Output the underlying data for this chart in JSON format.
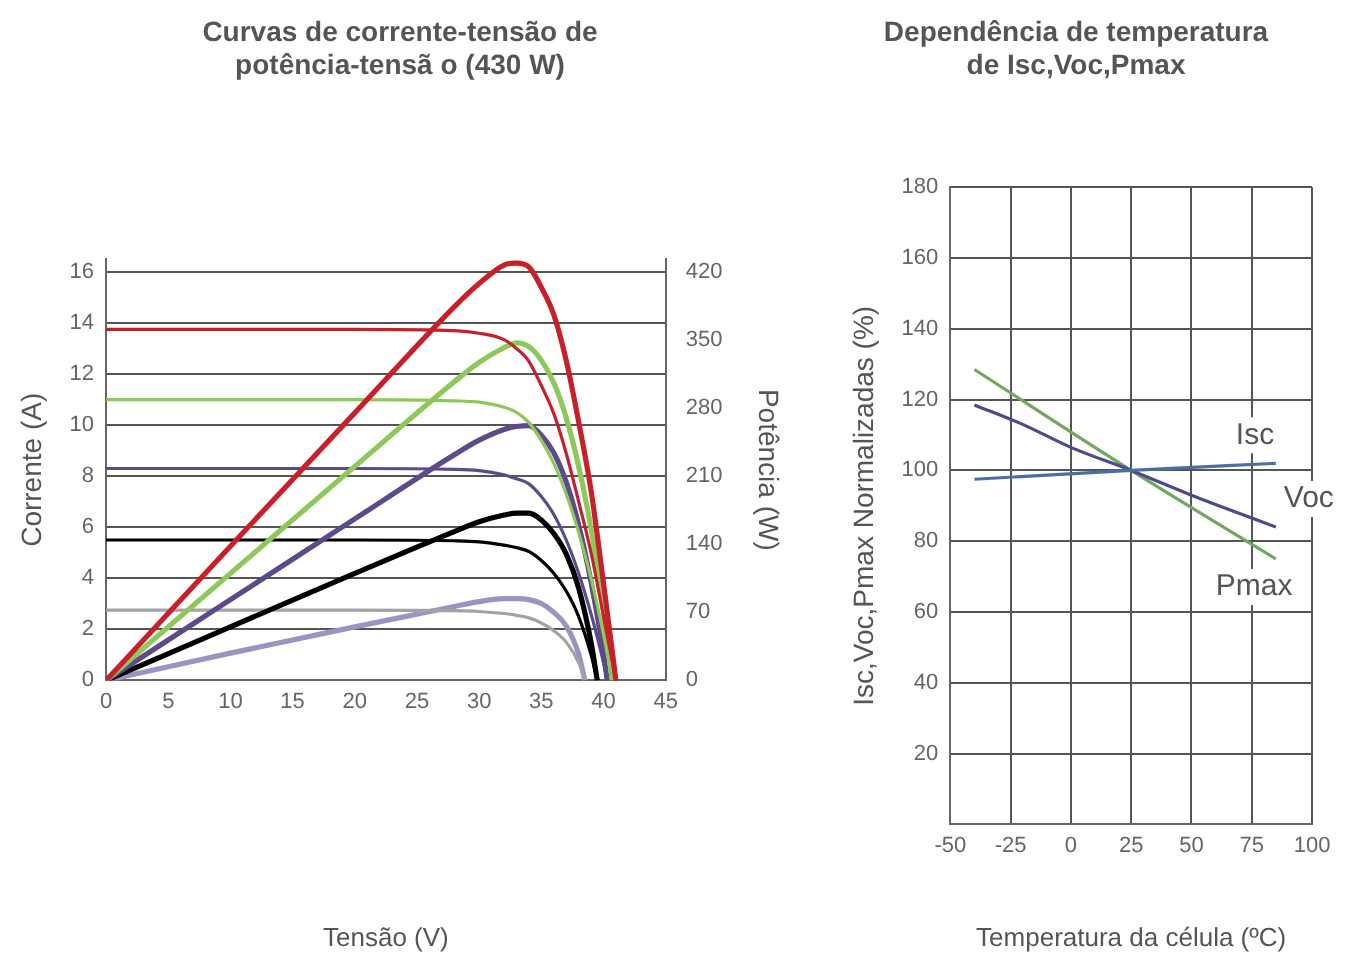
{
  "chart_data": [
    {
      "type": "line",
      "title": "Curvas de corrente-tensão de\npotência-tensã o (430 W)",
      "xlabel": "Tensão (V)",
      "ylabel": "Corrente (A)",
      "y2label": "Potência (W)",
      "xlim": [
        0,
        45
      ],
      "xticks": [
        0,
        5,
        10,
        15,
        20,
        25,
        30,
        35,
        40,
        45
      ],
      "ylim": [
        0,
        16.5
      ],
      "yticks": [
        0,
        2,
        4,
        6,
        8,
        10,
        12,
        14,
        16
      ],
      "y2lim": [
        0,
        433
      ],
      "y2ticks": [
        0,
        70,
        140,
        210,
        280,
        350,
        420
      ],
      "grid": "y",
      "legend": false,
      "marker": "none",
      "line_style": "solid",
      "series": [
        {
          "color": "#c8202a",
          "x": [
            0,
            10,
            20,
            28,
            30,
            32,
            33,
            34,
            35,
            36,
            37,
            38,
            39,
            40,
            41
          ],
          "values": [
            13.75,
            13.75,
            13.75,
            13.7,
            13.6,
            13.35,
            13.0,
            12.5,
            11.55,
            10.45,
            8.9,
            7.0,
            5.0,
            2.5,
            0
          ]
        },
        {
          "color": "#c8202a",
          "axis": "y2",
          "x": [
            0,
            10,
            20,
            28,
            30,
            32,
            33,
            34,
            35,
            36,
            37,
            38,
            39,
            40,
            41
          ],
          "values": [
            0,
            138,
            275,
            384,
            408,
            427,
            429,
            425,
            404,
            376,
            329,
            266,
            195,
            100,
            0
          ]
        },
        {
          "color": "#8dc85a",
          "x": [
            0,
            10,
            20,
            28,
            30,
            32,
            33,
            34,
            35,
            36,
            37,
            38,
            39,
            40,
            40.7
          ],
          "values": [
            11,
            11,
            11,
            10.95,
            10.9,
            10.7,
            10.5,
            10.1,
            9.4,
            8.5,
            7.3,
            5.8,
            4.0,
            1.8,
            0
          ]
        },
        {
          "color": "#8dc85a",
          "axis": "y2",
          "x": [
            0,
            10,
            20,
            28,
            30,
            32,
            33,
            34,
            35,
            36,
            37,
            38,
            39,
            40,
            40.7
          ],
          "values": [
            0,
            110,
            220,
            307,
            327,
            342,
            347,
            343,
            329,
            306,
            270,
            220,
            156,
            72,
            0
          ]
        },
        {
          "color": "#5d4a8a",
          "x": [
            0,
            10,
            20,
            28,
            30,
            32,
            33,
            34,
            35,
            36,
            37,
            38,
            39,
            40,
            40.3
          ],
          "values": [
            8.3,
            8.3,
            8.3,
            8.27,
            8.22,
            8.05,
            7.9,
            7.7,
            7.2,
            6.5,
            5.5,
            4.2,
            2.6,
            0.7,
            0
          ]
        },
        {
          "color": "#5d4a8a",
          "axis": "y2",
          "x": [
            0,
            10,
            20,
            28,
            30,
            32,
            33,
            34,
            35,
            36,
            37,
            38,
            39,
            40,
            40.3
          ],
          "values": [
            0,
            83,
            166,
            232,
            247,
            258,
            261,
            262,
            252,
            234,
            204,
            160,
            101,
            28,
            0
          ]
        },
        {
          "color": "#000000",
          "x": [
            0,
            10,
            20,
            28,
            30,
            32,
            33,
            34,
            35,
            36,
            37,
            38,
            39,
            39.5
          ],
          "values": [
            5.5,
            5.5,
            5.5,
            5.47,
            5.43,
            5.3,
            5.2,
            5.05,
            4.7,
            4.2,
            3.5,
            2.5,
            1.0,
            0
          ]
        },
        {
          "color": "#000000",
          "axis": "y2",
          "x": [
            0,
            10,
            20,
            28,
            30,
            32,
            33,
            34,
            35,
            36,
            37,
            38,
            39,
            39.5
          ],
          "values": [
            0,
            55,
            110,
            153,
            163,
            170,
            172,
            172,
            165,
            151,
            130,
            95,
            39,
            0
          ]
        },
        {
          "color": "#a3a3a3",
          "x": [
            0,
            10,
            20,
            28,
            30,
            32,
            33,
            34,
            35,
            36,
            37,
            38,
            38.5
          ],
          "values": [
            2.75,
            2.75,
            2.75,
            2.73,
            2.7,
            2.62,
            2.55,
            2.45,
            2.25,
            1.95,
            1.5,
            0.7,
            0
          ]
        },
        {
          "color": "#9d93c2",
          "axis": "y2",
          "x": [
            0,
            10,
            20,
            28,
            30,
            32,
            33,
            34,
            35,
            36,
            37,
            38,
            38.5
          ],
          "values": [
            0,
            28,
            55,
            76,
            81,
            84,
            84,
            83,
            79,
            70,
            56,
            27,
            0
          ]
        }
      ]
    },
    {
      "type": "line",
      "title": "Dependência de temperatura\nde Isc,Voc,Pmax",
      "xlabel": "Temperatura da célula (ºC)",
      "ylabel": "Isc,Voc,Pmax Normalizadas (%)",
      "xlim": [
        -50,
        100
      ],
      "xticks": [
        -50,
        -25,
        0,
        25,
        50,
        75,
        100
      ],
      "ylim": [
        0,
        180
      ],
      "yticks": [
        {
          "value": 0,
          "label": null
        },
        20,
        40,
        60,
        80,
        100,
        120,
        140,
        160,
        180
      ],
      "grid": true,
      "legend": false,
      "marker": "none",
      "line_style": "solid",
      "series": [
        {
          "name": "Isc",
          "color": "#4a6fa0",
          "x": [
            -40,
            25,
            85
          ],
          "values": [
            97.5,
            100,
            102
          ]
        },
        {
          "name": "Voc",
          "color": "#4b4a8a",
          "x": [
            -40,
            -20,
            0,
            25,
            50,
            85
          ],
          "values": [
            118.5,
            113,
            106.5,
            100,
            93,
            84
          ]
        },
        {
          "name": "Pmax",
          "color": "#6fa860",
          "x": [
            -40,
            25,
            85
          ],
          "values": [
            128.5,
            100,
            75
          ]
        }
      ]
    }
  ]
}
